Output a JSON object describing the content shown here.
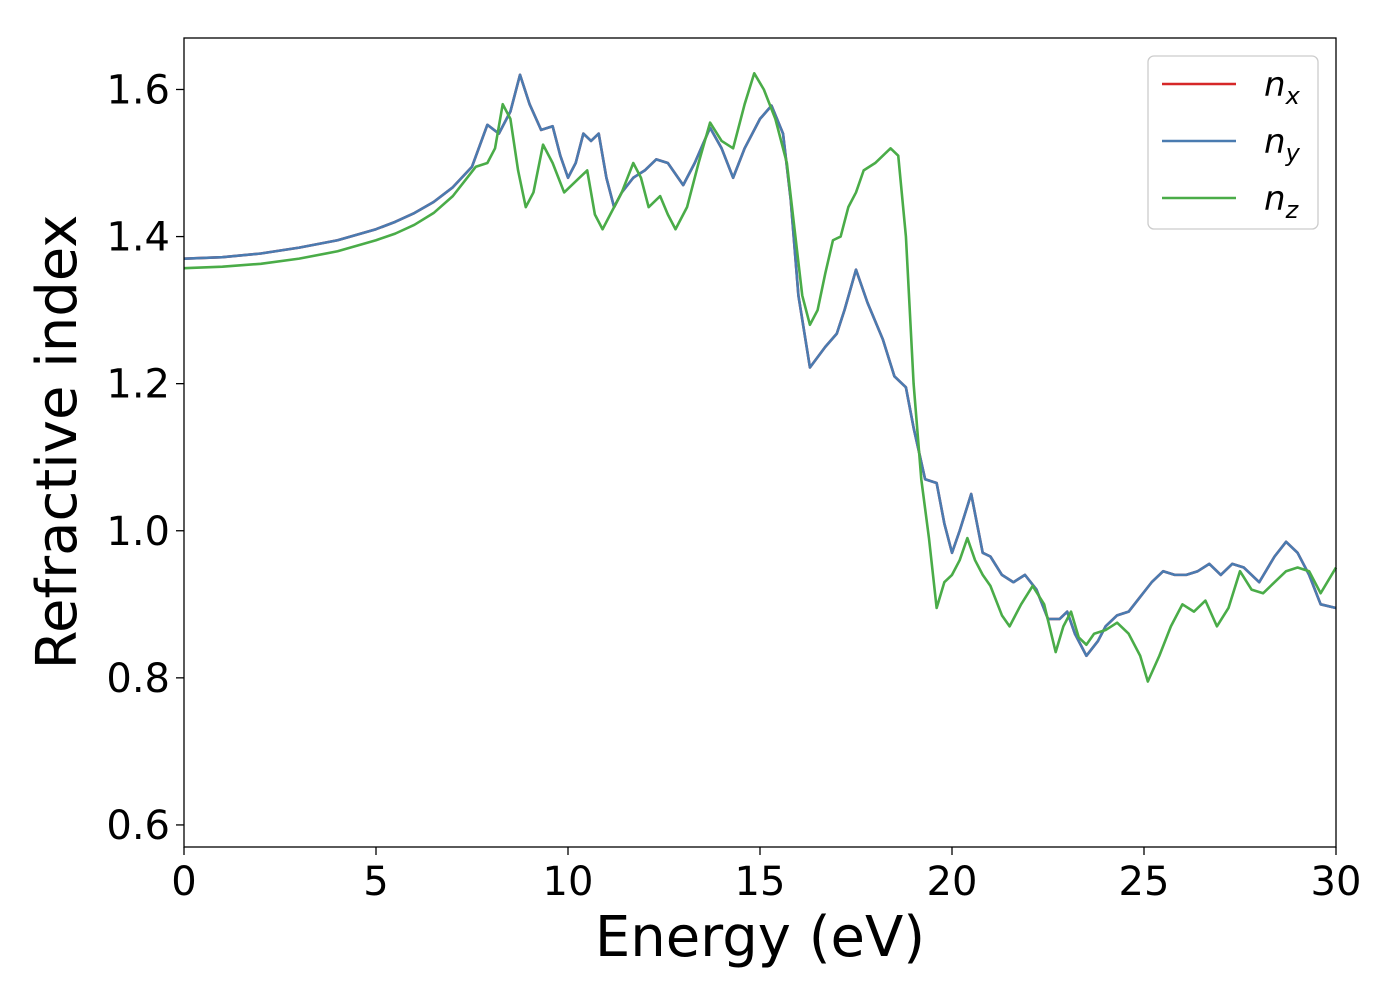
{
  "chart_data": {
    "type": "line",
    "xlabel": "Energy (eV)",
    "ylabel": "Refractive index",
    "xlim": [
      0,
      30
    ],
    "ylim": [
      0.57,
      1.67
    ],
    "xticks": [
      "0",
      "5",
      "10",
      "15",
      "20",
      "25",
      "30"
    ],
    "yticks": [
      "0.6",
      "0.8",
      "1.0",
      "1.2",
      "1.4",
      "1.6"
    ],
    "grid": false,
    "legend": {
      "position": "top-right",
      "entries": [
        {
          "base": "n",
          "sub": "x"
        },
        {
          "base": "n",
          "sub": "y"
        },
        {
          "base": "n",
          "sub": "z"
        }
      ]
    },
    "colors": {
      "nx": "#d62728",
      "ny": "#4a7bb0",
      "nz": "#4aac48"
    },
    "series": [
      {
        "key": "nx",
        "x": [
          0,
          1,
          2,
          3,
          4,
          5,
          5.5,
          6,
          6.5,
          7,
          7.5,
          7.9,
          8.2,
          8.5,
          8.75,
          9,
          9.3,
          9.6,
          9.8,
          10,
          10.2,
          10.4,
          10.6,
          10.8,
          11,
          11.2,
          11.4,
          11.7,
          12,
          12.3,
          12.6,
          13,
          13.3,
          13.7,
          14,
          14.3,
          14.6,
          15,
          15.3,
          15.6,
          15.8,
          16,
          16.3,
          16.7,
          17,
          17.2,
          17.5,
          17.8,
          18.2,
          18.5,
          18.8,
          19,
          19.3,
          19.6,
          19.8,
          20,
          20.2,
          20.5,
          20.8,
          21,
          21.3,
          21.6,
          21.9,
          22.2,
          22.5,
          22.8,
          23,
          23.2,
          23.5,
          23.8,
          24,
          24.3,
          24.6,
          24.9,
          25.2,
          25.5,
          25.8,
          26.1,
          26.4,
          26.7,
          27,
          27.3,
          27.6,
          28,
          28.4,
          28.7,
          29,
          29.3,
          29.6,
          30
        ],
        "y": [
          1.37,
          1.372,
          1.377,
          1.385,
          1.395,
          1.41,
          1.42,
          1.432,
          1.447,
          1.467,
          1.495,
          1.552,
          1.54,
          1.57,
          1.62,
          1.58,
          1.545,
          1.55,
          1.51,
          1.48,
          1.5,
          1.54,
          1.53,
          1.54,
          1.48,
          1.44,
          1.46,
          1.48,
          1.49,
          1.505,
          1.5,
          1.47,
          1.5,
          1.548,
          1.52,
          1.48,
          1.52,
          1.56,
          1.578,
          1.54,
          1.45,
          1.32,
          1.222,
          1.25,
          1.268,
          1.3,
          1.355,
          1.31,
          1.26,
          1.21,
          1.195,
          1.14,
          1.07,
          1.065,
          1.01,
          0.97,
          1.0,
          1.05,
          0.97,
          0.965,
          0.94,
          0.93,
          0.94,
          0.92,
          0.88,
          0.88,
          0.89,
          0.86,
          0.83,
          0.85,
          0.87,
          0.885,
          0.89,
          0.91,
          0.93,
          0.945,
          0.94,
          0.94,
          0.945,
          0.955,
          0.94,
          0.955,
          0.95,
          0.93,
          0.965,
          0.985,
          0.97,
          0.94,
          0.9,
          0.895
        ]
      },
      {
        "key": "ny",
        "x": [
          0,
          1,
          2,
          3,
          4,
          5,
          5.5,
          6,
          6.5,
          7,
          7.5,
          7.9,
          8.2,
          8.5,
          8.75,
          9,
          9.3,
          9.6,
          9.8,
          10,
          10.2,
          10.4,
          10.6,
          10.8,
          11,
          11.2,
          11.4,
          11.7,
          12,
          12.3,
          12.6,
          13,
          13.3,
          13.7,
          14,
          14.3,
          14.6,
          15,
          15.3,
          15.6,
          15.8,
          16,
          16.3,
          16.7,
          17,
          17.2,
          17.5,
          17.8,
          18.2,
          18.5,
          18.8,
          19,
          19.3,
          19.6,
          19.8,
          20,
          20.2,
          20.5,
          20.8,
          21,
          21.3,
          21.6,
          21.9,
          22.2,
          22.5,
          22.8,
          23,
          23.2,
          23.5,
          23.8,
          24,
          24.3,
          24.6,
          24.9,
          25.2,
          25.5,
          25.8,
          26.1,
          26.4,
          26.7,
          27,
          27.3,
          27.6,
          28,
          28.4,
          28.7,
          29,
          29.3,
          29.6,
          30
        ],
        "y": [
          1.37,
          1.372,
          1.377,
          1.385,
          1.395,
          1.41,
          1.42,
          1.432,
          1.447,
          1.467,
          1.495,
          1.552,
          1.54,
          1.57,
          1.62,
          1.58,
          1.545,
          1.55,
          1.51,
          1.48,
          1.5,
          1.54,
          1.53,
          1.54,
          1.48,
          1.44,
          1.46,
          1.48,
          1.49,
          1.505,
          1.5,
          1.47,
          1.5,
          1.548,
          1.52,
          1.48,
          1.52,
          1.56,
          1.578,
          1.54,
          1.45,
          1.32,
          1.222,
          1.25,
          1.268,
          1.3,
          1.355,
          1.31,
          1.26,
          1.21,
          1.195,
          1.14,
          1.07,
          1.065,
          1.01,
          0.97,
          1.0,
          1.05,
          0.97,
          0.965,
          0.94,
          0.93,
          0.94,
          0.92,
          0.88,
          0.88,
          0.89,
          0.86,
          0.83,
          0.85,
          0.87,
          0.885,
          0.89,
          0.91,
          0.93,
          0.945,
          0.94,
          0.94,
          0.945,
          0.955,
          0.94,
          0.955,
          0.95,
          0.93,
          0.965,
          0.985,
          0.97,
          0.94,
          0.9,
          0.895
        ]
      },
      {
        "key": "nz",
        "x": [
          0,
          1,
          2,
          3,
          4,
          5,
          5.5,
          6,
          6.5,
          7,
          7.3,
          7.6,
          7.9,
          8.1,
          8.3,
          8.5,
          8.7,
          8.9,
          9.1,
          9.35,
          9.6,
          9.9,
          10.1,
          10.3,
          10.5,
          10.7,
          10.9,
          11.1,
          11.4,
          11.7,
          11.9,
          12.1,
          12.4,
          12.6,
          12.8,
          13.1,
          13.4,
          13.7,
          14,
          14.3,
          14.6,
          14.85,
          15.1,
          15.4,
          15.7,
          15.9,
          16.1,
          16.3,
          16.5,
          16.7,
          16.9,
          17.1,
          17.3,
          17.5,
          17.7,
          18,
          18.2,
          18.4,
          18.6,
          18.8,
          19,
          19.2,
          19.4,
          19.6,
          19.8,
          20,
          20.2,
          20.4,
          20.6,
          20.8,
          21,
          21.3,
          21.5,
          21.8,
          22.1,
          22.4,
          22.7,
          22.9,
          23.1,
          23.3,
          23.5,
          23.7,
          24,
          24.3,
          24.6,
          24.9,
          25.1,
          25.4,
          25.7,
          26,
          26.3,
          26.6,
          26.9,
          27.2,
          27.5,
          27.8,
          28.1,
          28.4,
          28.7,
          29,
          29.3,
          29.6,
          30
        ],
        "y": [
          1.357,
          1.359,
          1.363,
          1.37,
          1.38,
          1.395,
          1.404,
          1.416,
          1.432,
          1.455,
          1.475,
          1.495,
          1.5,
          1.52,
          1.58,
          1.56,
          1.49,
          1.44,
          1.46,
          1.525,
          1.5,
          1.46,
          1.47,
          1.48,
          1.49,
          1.43,
          1.41,
          1.43,
          1.46,
          1.5,
          1.48,
          1.44,
          1.455,
          1.43,
          1.41,
          1.44,
          1.5,
          1.555,
          1.53,
          1.52,
          1.58,
          1.622,
          1.6,
          1.56,
          1.5,
          1.41,
          1.32,
          1.28,
          1.3,
          1.35,
          1.395,
          1.4,
          1.44,
          1.46,
          1.49,
          1.5,
          1.51,
          1.52,
          1.51,
          1.4,
          1.2,
          1.07,
          0.99,
          0.895,
          0.93,
          0.94,
          0.96,
          0.99,
          0.96,
          0.94,
          0.925,
          0.885,
          0.87,
          0.9,
          0.925,
          0.9,
          0.835,
          0.87,
          0.89,
          0.855,
          0.845,
          0.86,
          0.865,
          0.875,
          0.86,
          0.83,
          0.795,
          0.83,
          0.87,
          0.9,
          0.89,
          0.905,
          0.87,
          0.895,
          0.945,
          0.92,
          0.915,
          0.93,
          0.945,
          0.95,
          0.945,
          0.915,
          0.95
        ]
      }
    ]
  }
}
